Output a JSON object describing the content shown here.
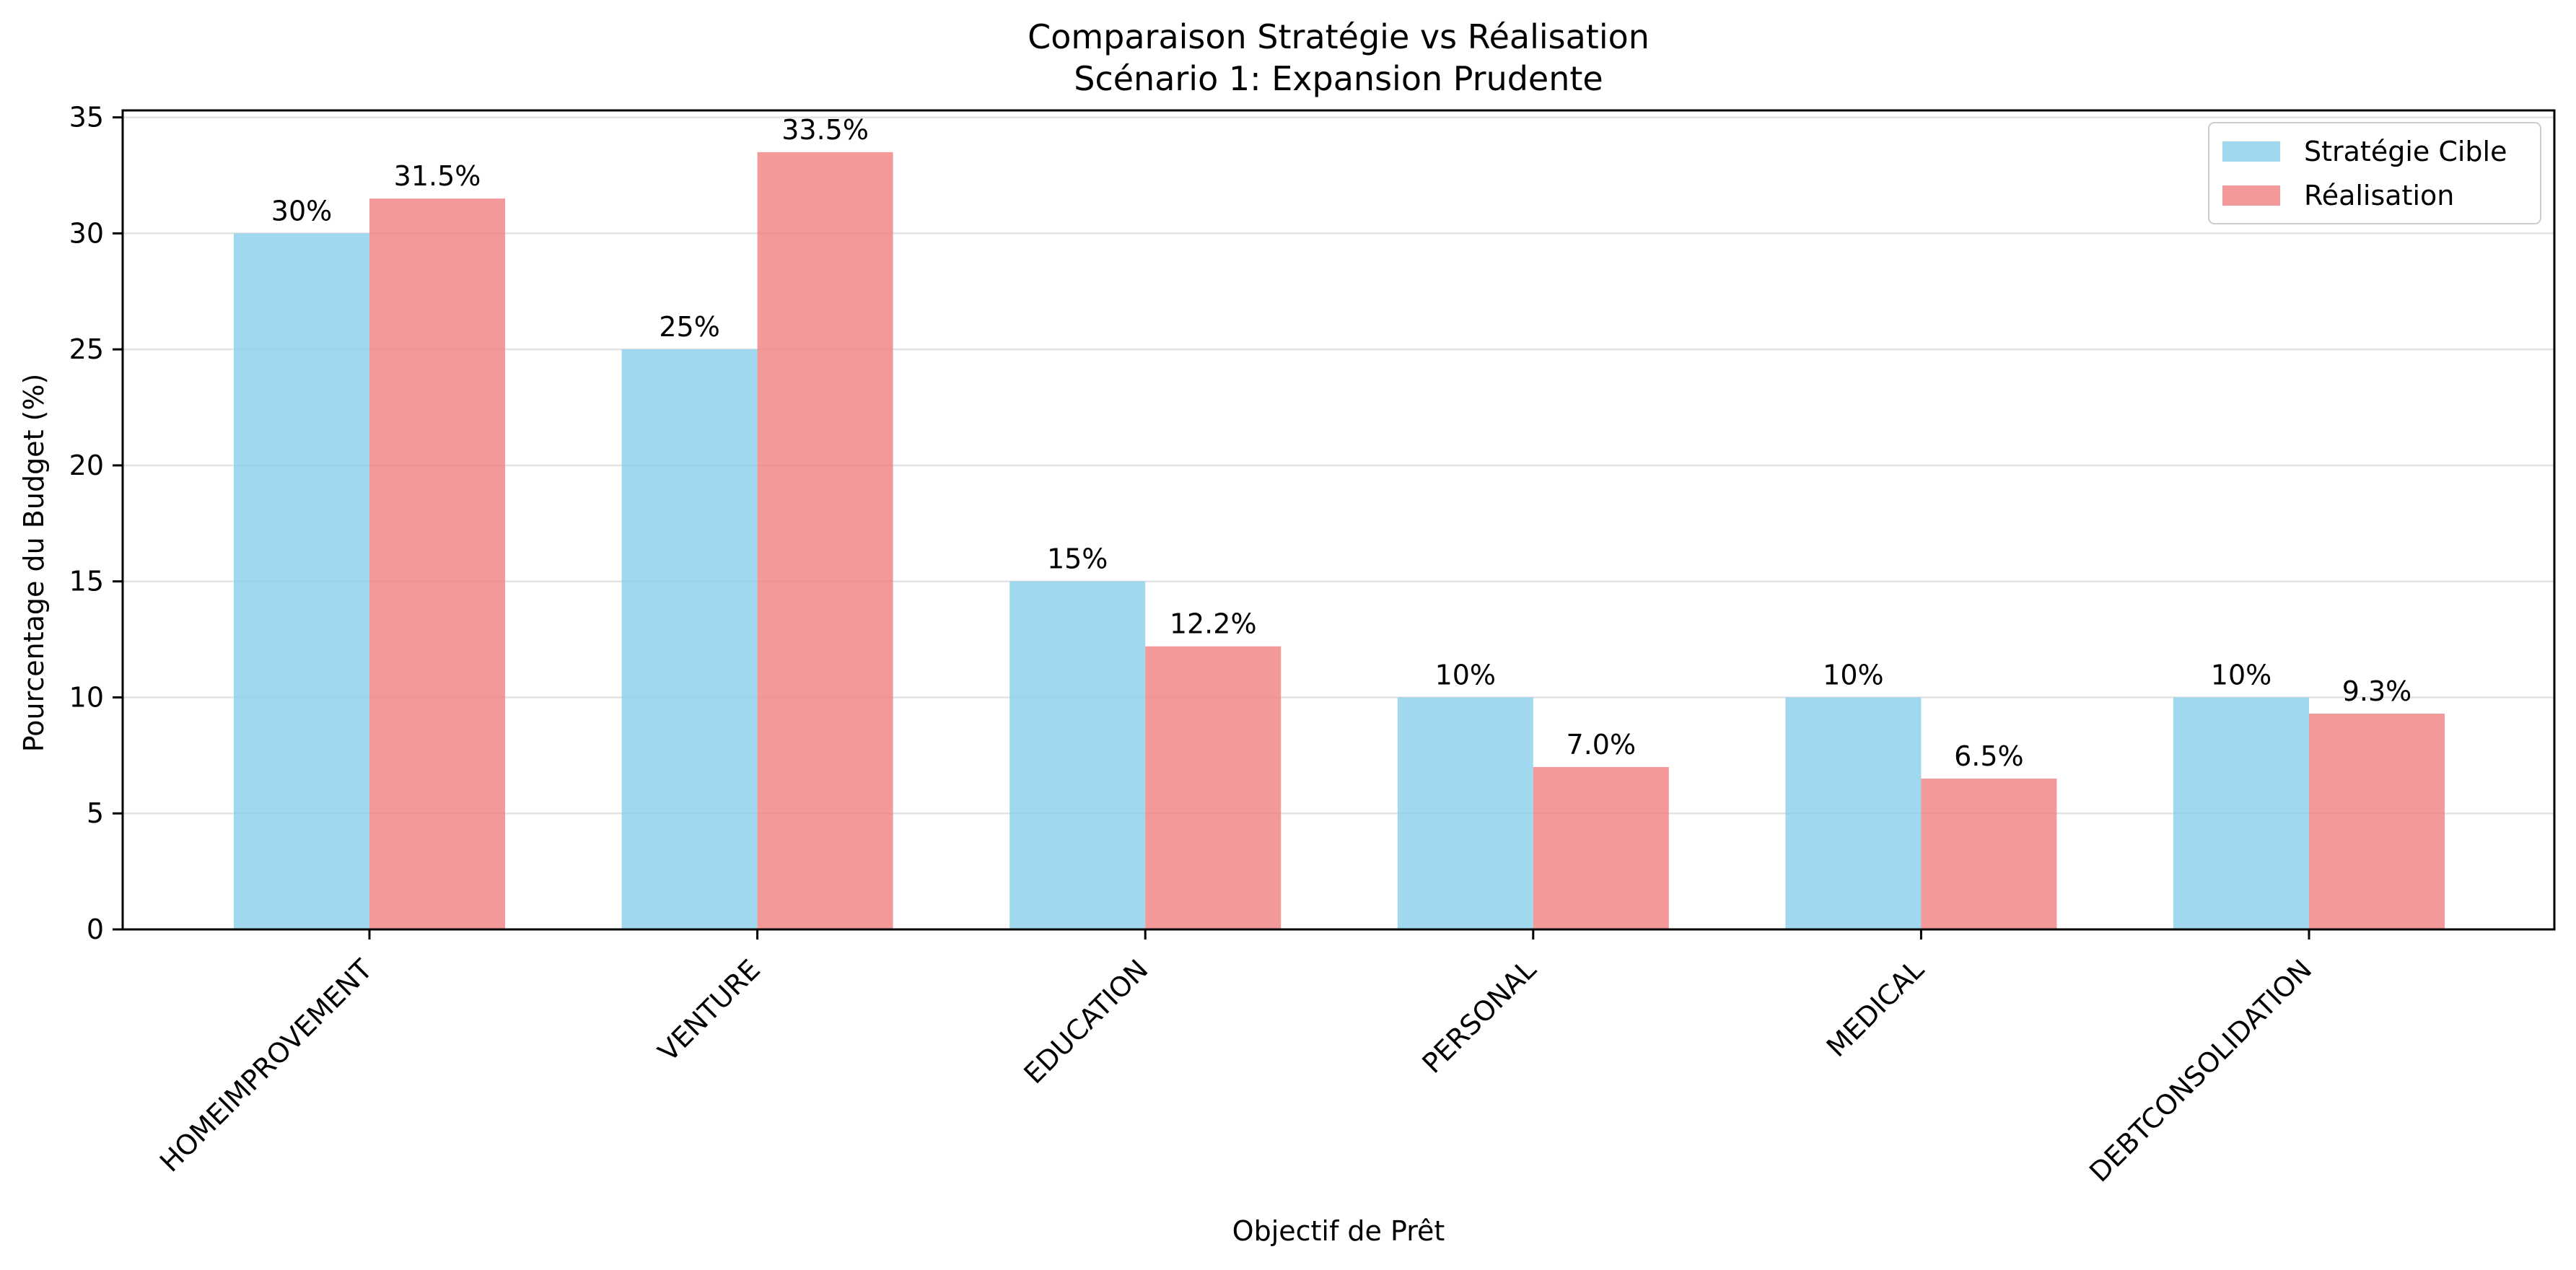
{
  "chart_data": {
    "type": "bar",
    "title_line1": "Comparaison Stratégie vs Réalisation",
    "title_line2": "Scénario 1: Expansion Prudente",
    "xlabel": "Objectif de Prêt",
    "ylabel": "Pourcentage du Budget (%)",
    "categories": [
      "HOMEIMPROVEMENT",
      "VENTURE",
      "EDUCATION",
      "PERSONAL",
      "MEDICAL",
      "DEBTCONSOLIDATION"
    ],
    "ylim": [
      0,
      35.3
    ],
    "yticks": [
      0,
      5,
      10,
      15,
      20,
      25,
      30,
      35
    ],
    "grid": "horizontal",
    "legend_position": "top-right",
    "series": [
      {
        "name": "Stratégie Cible",
        "color": "#87CEEB",
        "values": [
          30,
          25,
          15,
          10,
          10,
          10
        ],
        "labels": [
          "30%",
          "25%",
          "15%",
          "10%",
          "10%",
          "10%"
        ]
      },
      {
        "name": "Réalisation",
        "color": "#F08080",
        "values": [
          31.5,
          33.5,
          12.2,
          7.0,
          6.5,
          9.3
        ],
        "labels": [
          "31.5%",
          "33.5%",
          "12.2%",
          "7.0%",
          "6.5%",
          "9.3%"
        ]
      }
    ]
  }
}
